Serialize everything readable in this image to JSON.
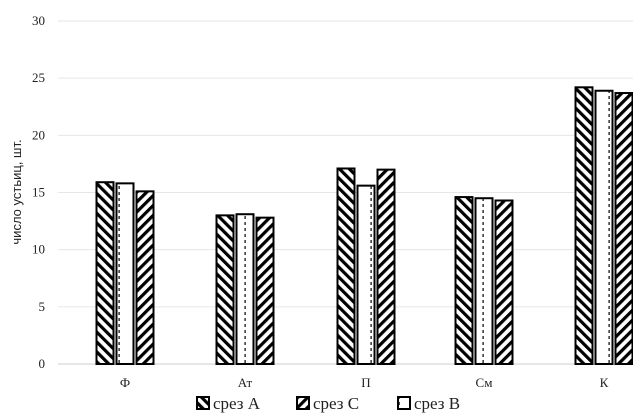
{
  "chart_data": {
    "type": "bar",
    "ylabel": "число устьиц, шт.",
    "xlabel": "",
    "categories": [
      "Ф",
      "Ат",
      "П",
      "См",
      "К"
    ],
    "series": [
      {
        "name": "срез А",
        "values": [
          15.9,
          13.0,
          17.1,
          14.6,
          24.2
        ],
        "pattern": "backslash"
      },
      {
        "name": "срез В",
        "values": [
          15.8,
          13.1,
          15.6,
          14.5,
          23.9
        ],
        "pattern": "dashed-vertical"
      },
      {
        "name": "срез С",
        "values": [
          15.1,
          12.8,
          17.0,
          14.3,
          23.7
        ],
        "pattern": "forwardslash"
      }
    ],
    "legend_order": [
      "срез А",
      "срез С",
      "срез В"
    ],
    "ylim": [
      0,
      30
    ],
    "yticks": [
      0,
      5,
      10,
      15,
      20,
      25,
      30
    ],
    "grid": true,
    "legend_position": "bottom",
    "colors": {
      "bar_stroke": "#000000",
      "hatch": "#000000",
      "grid": "#e6e6e6",
      "axis": "#cccccc"
    }
  }
}
